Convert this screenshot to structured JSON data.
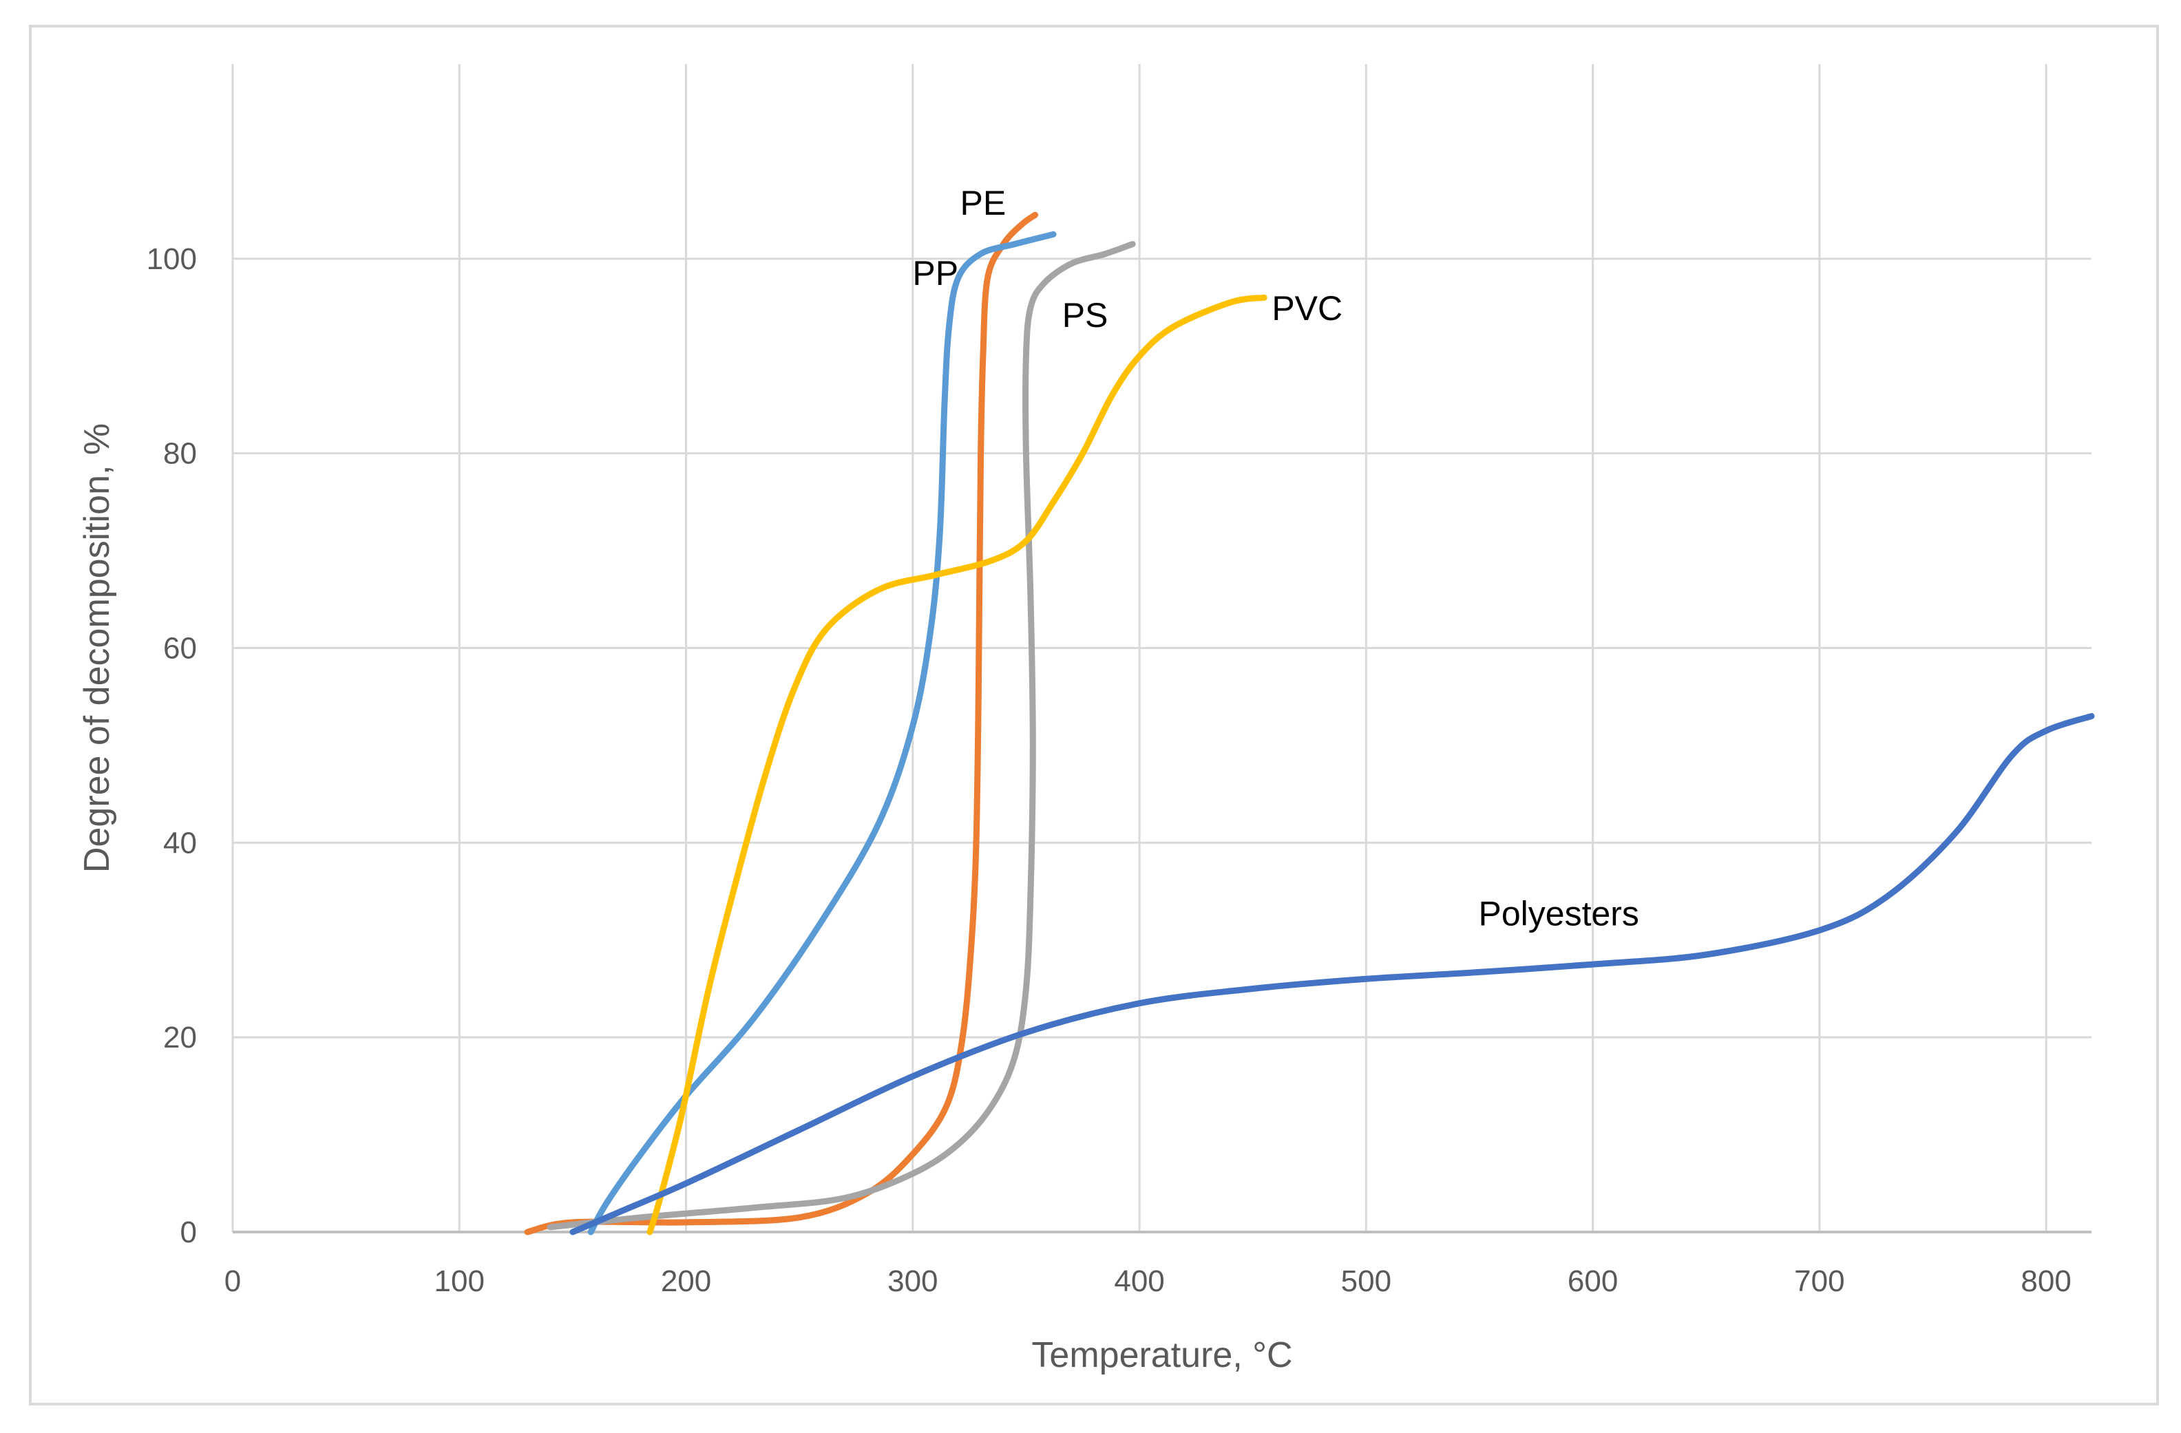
{
  "chart_data": {
    "type": "line",
    "title": "",
    "xlabel": "Temperature, °C",
    "ylabel": "Degree of decomposition, %",
    "xlim": [
      0,
      820
    ],
    "ylim": [
      0,
      120
    ],
    "x_ticks": [
      0,
      100,
      200,
      300,
      400,
      500,
      600,
      700,
      800
    ],
    "x_tick_labels": [
      "0",
      "100",
      "200",
      "300",
      "400",
      "500",
      "600",
      "700",
      "800"
    ],
    "y_ticks": [
      0,
      20,
      40,
      60,
      80,
      100
    ],
    "y_tick_labels": [
      "0",
      "20",
      "40",
      "60",
      "80",
      "100"
    ],
    "grid": true,
    "legend": "none (series labelled inline)",
    "series": [
      {
        "name": "PE",
        "label": "PE",
        "color": "#ED7D31",
        "points": [
          [
            130,
            0
          ],
          [
            150,
            1
          ],
          [
            200,
            1
          ],
          [
            250,
            1.5
          ],
          [
            280,
            4
          ],
          [
            300,
            8
          ],
          [
            315,
            13
          ],
          [
            322,
            20
          ],
          [
            326,
            30
          ],
          [
            328,
            40
          ],
          [
            329,
            55
          ],
          [
            329.5,
            68
          ],
          [
            330,
            80
          ],
          [
            331,
            90
          ],
          [
            333,
            98
          ],
          [
            340,
            101.5
          ],
          [
            348,
            103.5
          ],
          [
            354,
            104.5
          ]
        ]
      },
      {
        "name": "PP",
        "label": "PP",
        "color": "#5B9BD5",
        "points": [
          [
            158,
            0
          ],
          [
            165,
            3
          ],
          [
            180,
            8
          ],
          [
            200,
            14
          ],
          [
            230,
            22
          ],
          [
            260,
            32
          ],
          [
            285,
            42
          ],
          [
            300,
            52
          ],
          [
            308,
            62
          ],
          [
            312,
            72
          ],
          [
            314,
            85
          ],
          [
            316,
            93
          ],
          [
            320,
            98
          ],
          [
            330,
            100.5
          ],
          [
            345,
            101.5
          ],
          [
            362,
            102.5
          ]
        ]
      },
      {
        "name": "PS",
        "label": "PS",
        "color": "#A5A5A5",
        "points": [
          [
            140,
            0.5
          ],
          [
            180,
            1.5
          ],
          [
            230,
            2.5
          ],
          [
            270,
            3.5
          ],
          [
            300,
            6
          ],
          [
            320,
            9
          ],
          [
            335,
            13
          ],
          [
            345,
            18
          ],
          [
            350,
            25
          ],
          [
            352,
            35
          ],
          [
            353,
            50
          ],
          [
            352,
            65
          ],
          [
            350,
            80
          ],
          [
            350,
            90
          ],
          [
            352,
            95
          ],
          [
            358,
            97.5
          ],
          [
            370,
            99.5
          ],
          [
            385,
            100.5
          ],
          [
            397,
            101.5
          ]
        ]
      },
      {
        "name": "PVC",
        "label": "PVC",
        "color": "#FFC000",
        "points": [
          [
            184,
            0
          ],
          [
            188,
            3
          ],
          [
            198,
            12
          ],
          [
            210,
            25
          ],
          [
            222,
            36
          ],
          [
            235,
            47
          ],
          [
            248,
            56
          ],
          [
            262,
            62
          ],
          [
            285,
            66
          ],
          [
            310,
            67.5
          ],
          [
            335,
            69
          ],
          [
            350,
            71
          ],
          [
            362,
            75
          ],
          [
            375,
            80
          ],
          [
            388,
            86
          ],
          [
            400,
            90
          ],
          [
            415,
            93
          ],
          [
            440,
            95.5
          ],
          [
            455,
            96
          ]
        ]
      },
      {
        "name": "Polyesters",
        "label": "Polyesters",
        "color": "#4472C4",
        "points": [
          [
            150,
            0
          ],
          [
            170,
            2
          ],
          [
            200,
            5
          ],
          [
            250,
            10.5
          ],
          [
            300,
            16
          ],
          [
            350,
            20.5
          ],
          [
            400,
            23.5
          ],
          [
            450,
            25
          ],
          [
            500,
            26
          ],
          [
            550,
            26.7
          ],
          [
            600,
            27.5
          ],
          [
            650,
            28.5
          ],
          [
            700,
            31
          ],
          [
            730,
            34.5
          ],
          [
            760,
            41
          ],
          [
            785,
            49
          ],
          [
            800,
            51.5
          ],
          [
            820,
            53
          ]
        ]
      }
    ]
  }
}
